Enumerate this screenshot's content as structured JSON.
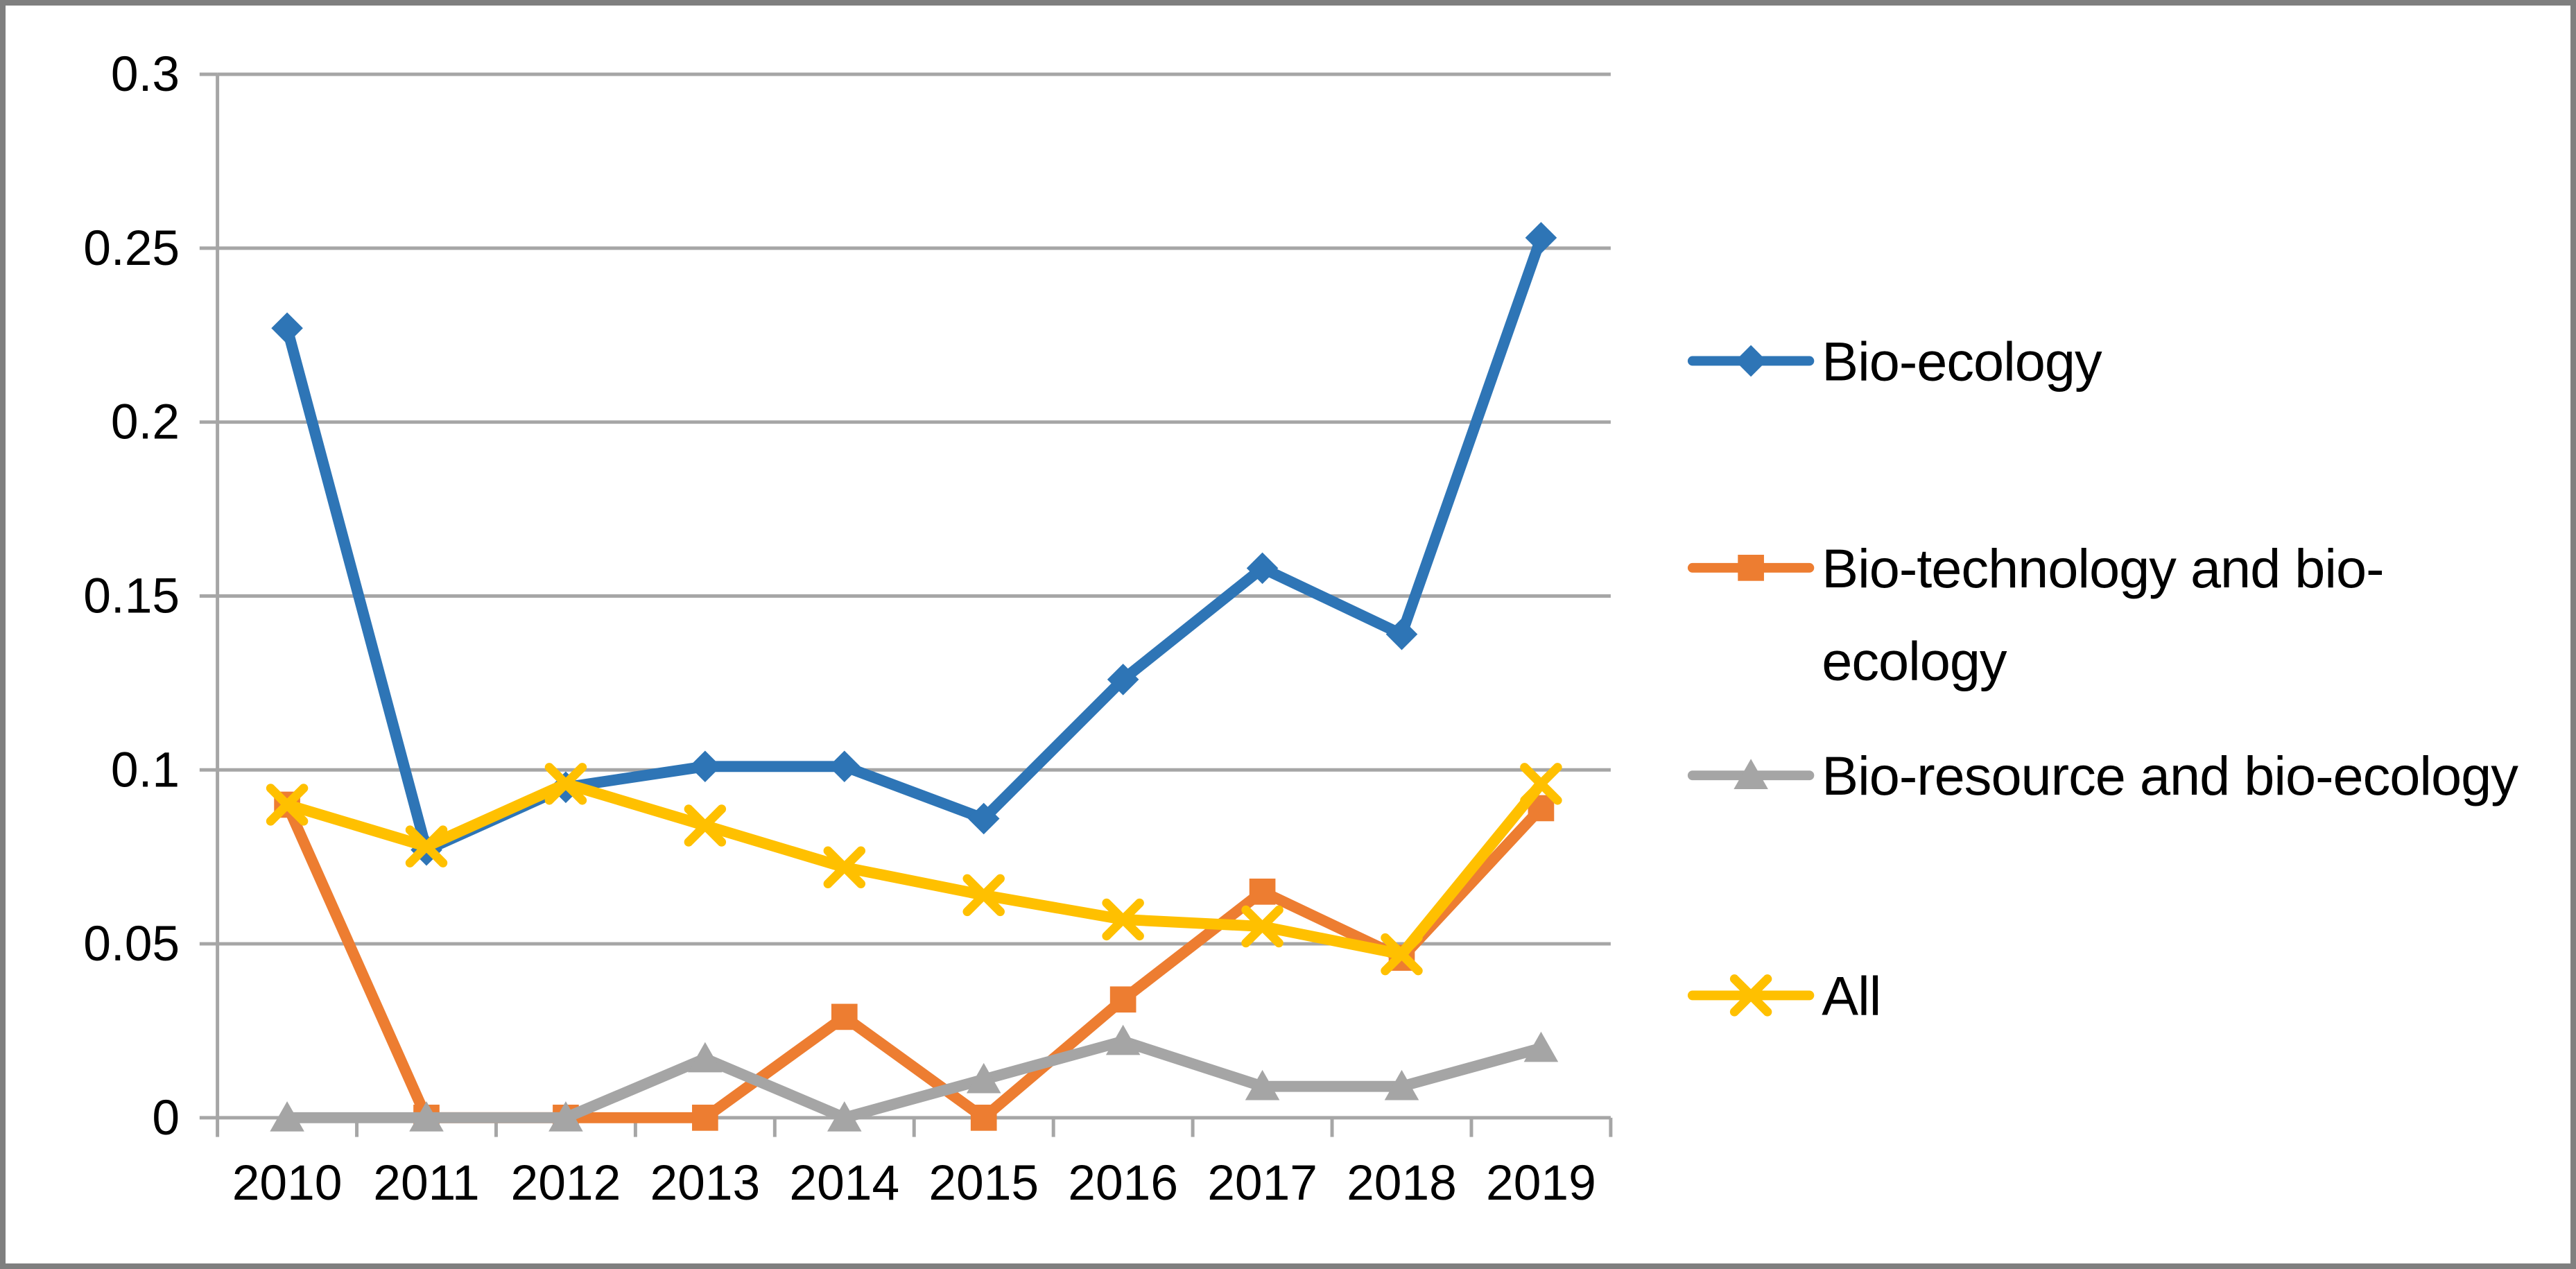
{
  "chart_data": {
    "type": "line",
    "categories": [
      "2010",
      "2011",
      "2012",
      "2013",
      "2014",
      "2015",
      "2016",
      "2017",
      "2018",
      "2019"
    ],
    "series": [
      {
        "name": "Bio-ecology",
        "marker": "diamond",
        "color": "#2E75B6",
        "values": [
          0.227,
          0.077,
          0.095,
          0.101,
          0.101,
          0.086,
          0.126,
          0.158,
          0.139,
          0.253
        ]
      },
      {
        "name": "Bio-technology and bio-ecology",
        "marker": "square",
        "color": "#ED7D31",
        "values": [
          0.09,
          0.0,
          0.0,
          0.0,
          0.029,
          0.0,
          0.034,
          0.065,
          0.046,
          0.089
        ]
      },
      {
        "name": "Bio-resource and bio-ecology",
        "marker": "triangle",
        "color": "#A5A5A5",
        "values": [
          0.0,
          0.0,
          0.0,
          0.017,
          0.0,
          0.011,
          0.022,
          0.009,
          0.009,
          0.02
        ]
      },
      {
        "name": "All",
        "marker": "x",
        "color": "#FFC000",
        "values": [
          0.09,
          0.078,
          0.096,
          0.084,
          0.072,
          0.064,
          0.057,
          0.055,
          0.047,
          0.096
        ]
      }
    ],
    "legend": [
      {
        "series": "Bio-ecology",
        "lines": [
          "Bio-ecology"
        ]
      },
      {
        "series": "Bio-technology and bio-ecology",
        "lines": [
          "Bio-technology and bio-",
          "ecology"
        ]
      },
      {
        "series": "Bio-resource and bio-ecology",
        "lines": [
          "Bio-resource and bio-ecology"
        ]
      },
      {
        "series": "All",
        "lines": [
          "All"
        ]
      }
    ],
    "xlabel": "",
    "ylabel": "",
    "ylim": [
      0,
      0.3
    ],
    "ytick_step": 0.05,
    "ytick_labels": [
      "0",
      "0.05",
      "0.1",
      "0.15",
      "0.2",
      "0.25",
      "0.3"
    ],
    "grid": true,
    "legend_position": "right",
    "style": {
      "grid_color": "#A6A6A6",
      "axis_color": "#A6A6A6",
      "text_color": "#000000",
      "border_color": "#7F7F7F",
      "background": "#FFFFFF"
    }
  }
}
